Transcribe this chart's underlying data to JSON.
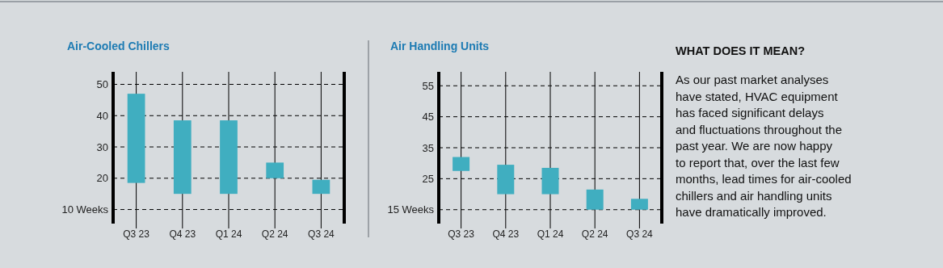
{
  "chart_data": [
    {
      "type": "bar",
      "title": "Air-Cooled Chillers",
      "categories": [
        "Q3 23",
        "Q4 23",
        "Q1 24",
        "Q2 24",
        "Q3 24"
      ],
      "base": [
        18.5,
        15,
        15,
        20,
        15
      ],
      "values": [
        28.5,
        23.5,
        23.5,
        5,
        4.5
      ],
      "color": "#40aec0",
      "ylim": [
        5.5,
        54
      ],
      "yticks": [
        {
          "value": 10,
          "label": "10 Weeks"
        },
        20,
        30,
        40,
        50
      ],
      "grid": true
    },
    {
      "type": "bar",
      "title": "Air Handling Units",
      "categories": [
        "Q3 23",
        "Q4 23",
        "Q1 24",
        "Q2 24",
        "Q3 24"
      ],
      "base": [
        27.5,
        20,
        20,
        15,
        15
      ],
      "values": [
        4.5,
        9.5,
        8.5,
        6.5,
        3.5
      ],
      "color": "#40aec0",
      "ylim": [
        10.5,
        59.5
      ],
      "yticks": [
        {
          "value": 15,
          "label": "15 Weeks"
        },
        25,
        35,
        45,
        55
      ],
      "grid": true
    },
    {
      "type": "other",
      "title": "WHAT DOES IT MEAN?",
      "annotations": [
        "As our past market analyses",
        "have stated, HVAC equipment",
        "has faced significant delays",
        "and fluctuations throughout the",
        "past year. We are now happy",
        "to report that, over the last few",
        "months, lead times for air-cooled",
        "chillers and air handling units",
        "have dramatically improved."
      ]
    }
  ]
}
